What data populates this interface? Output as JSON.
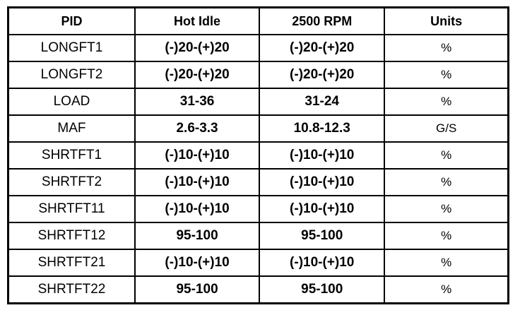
{
  "table": {
    "headers": [
      "PID",
      "Hot Idle",
      "2500 RPM",
      "Units"
    ],
    "rows": [
      [
        "LONGFT1",
        "(-)20-(+)20",
        "(-)20-(+)20",
        "%"
      ],
      [
        "LONGFT2",
        "(-)20-(+)20",
        "(-)20-(+)20",
        "%"
      ],
      [
        "LOAD",
        "31-36",
        "31-24",
        "%"
      ],
      [
        "MAF",
        "2.6-3.3",
        "10.8-12.3",
        "G/S"
      ],
      [
        "SHRTFT1",
        "(-)10-(+)10",
        "(-)10-(+)10",
        "%"
      ],
      [
        "SHRTFT2",
        "(-)10-(+)10",
        "(-)10-(+)10",
        "%"
      ],
      [
        "SHRTFT11",
        "(-)10-(+)10",
        "(-)10-(+)10",
        "%"
      ],
      [
        "SHRTFT12",
        "95-100",
        "95-100",
        "%"
      ],
      [
        "SHRTFT21",
        "(-)10-(+)10",
        "(-)10-(+)10",
        "%"
      ],
      [
        "SHRTFT22",
        "95-100",
        "95-100",
        "%"
      ]
    ]
  }
}
